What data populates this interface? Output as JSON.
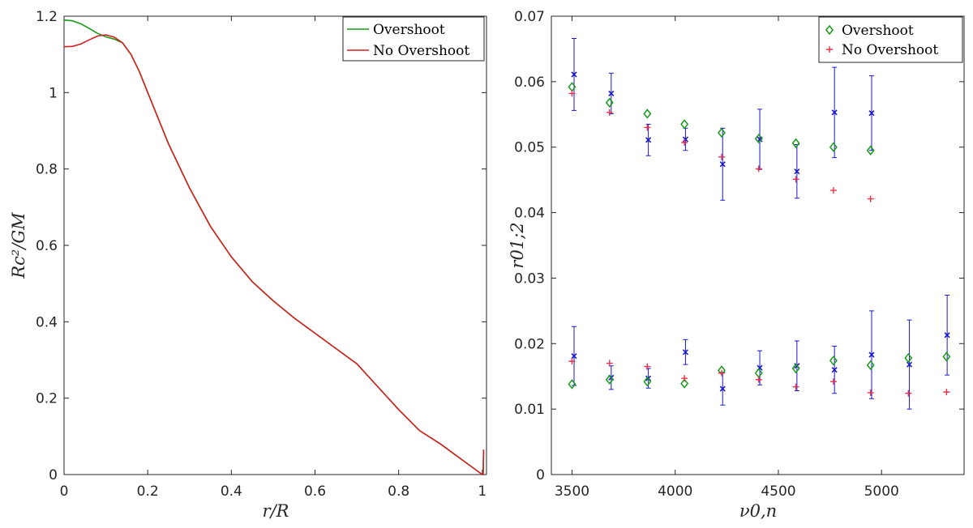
{
  "chart_data": [
    {
      "type": "line",
      "xlabel": "r/R",
      "ylabel": "Rc²/GM",
      "xlim": [
        0,
        1.01
      ],
      "ylim": [
        0,
        1.2
      ],
      "xticks": [
        "0",
        "0.2",
        "0.4",
        "0.6",
        "0.8",
        "1"
      ],
      "yticks": [
        "0",
        "0.2",
        "0.4",
        "0.6",
        "0.8",
        "1",
        "1.2"
      ],
      "grid": false,
      "legend": "top-right",
      "series": [
        {
          "name": "Overshoot",
          "color": "#1a9a1a",
          "x": [
            0,
            0.02,
            0.04,
            0.06,
            0.08,
            0.1,
            0.12,
            0.14,
            0.16,
            0.18,
            0.2,
            0.25,
            0.3,
            0.35,
            0.4,
            0.45,
            0.5,
            0.55,
            0.6,
            0.65,
            0.7,
            0.75,
            0.8,
            0.85,
            0.9,
            0.95,
            1.0,
            1.002,
            1.003
          ],
          "y": [
            1.19,
            1.188,
            1.18,
            1.168,
            1.155,
            1.146,
            1.14,
            1.13,
            1.1,
            1.055,
            1.0,
            0.865,
            0.75,
            0.65,
            0.57,
            0.505,
            0.455,
            0.41,
            0.37,
            0.33,
            0.29,
            0.23,
            0.17,
            0.115,
            0.08,
            0.04,
            0.0,
            0.0,
            0.065
          ]
        },
        {
          "name": "No Overshoot",
          "color": "#d42020",
          "x": [
            0,
            0.02,
            0.04,
            0.06,
            0.08,
            0.1,
            0.12,
            0.14,
            0.16,
            0.18,
            0.2,
            0.25,
            0.3,
            0.35,
            0.4,
            0.45,
            0.5,
            0.55,
            0.6,
            0.65,
            0.7,
            0.75,
            0.8,
            0.85,
            0.9,
            0.95,
            1.0,
            1.002,
            1.003
          ],
          "y": [
            1.12,
            1.121,
            1.127,
            1.138,
            1.148,
            1.151,
            1.145,
            1.13,
            1.1,
            1.055,
            1.0,
            0.865,
            0.75,
            0.65,
            0.57,
            0.505,
            0.455,
            0.41,
            0.37,
            0.33,
            0.29,
            0.23,
            0.17,
            0.115,
            0.08,
            0.04,
            0.0,
            0.0,
            0.065
          ]
        }
      ]
    },
    {
      "type": "scatter",
      "xlabel": "ν0,n",
      "ylabel": "r01;2",
      "xlim": [
        3400,
        5400
      ],
      "ylim": [
        0,
        0.07
      ],
      "xticks": [
        "3500",
        "4000",
        "4500",
        "5000"
      ],
      "yticks": [
        "0",
        "0.01",
        "0.02",
        "0.03",
        "0.04",
        "0.05",
        "0.06",
        "0.07"
      ],
      "grid": false,
      "legend": "top-right",
      "series": [
        {
          "name": "Overshoot",
          "marker": "diamond",
          "color": "#1a9a1a",
          "points": [
            [
              3500,
              0.0592
            ],
            [
              3682,
              0.0568
            ],
            [
              3865,
              0.0551
            ],
            [
              4045,
              0.0535
            ],
            [
              4225,
              0.0522
            ],
            [
              4405,
              0.0513
            ],
            [
              4585,
              0.0506
            ],
            [
              4767,
              0.05
            ],
            [
              4947,
              0.0495
            ],
            [
              3500,
              0.0138
            ],
            [
              3682,
              0.0145
            ],
            [
              3865,
              0.0142
            ],
            [
              4045,
              0.0139
            ],
            [
              4225,
              0.0159
            ],
            [
              4405,
              0.0155
            ],
            [
              4585,
              0.0162
            ],
            [
              4767,
              0.0174
            ],
            [
              4947,
              0.0167
            ],
            [
              5130,
              0.0178
            ],
            [
              5315,
              0.018
            ]
          ]
        },
        {
          "name": "No Overshoot",
          "marker": "plus",
          "color": "#e8324a",
          "points": [
            [
              3500,
              0.0582
            ],
            [
              3682,
              0.0553
            ],
            [
              3865,
              0.053
            ],
            [
              4045,
              0.0507
            ],
            [
              4225,
              0.0485
            ],
            [
              4405,
              0.0467
            ],
            [
              4585,
              0.0451
            ],
            [
              4767,
              0.0434
            ],
            [
              4947,
              0.0421
            ],
            [
              3500,
              0.0173
            ],
            [
              3682,
              0.017
            ],
            [
              3865,
              0.0165
            ],
            [
              4045,
              0.0147
            ],
            [
              4225,
              0.0155
            ],
            [
              4405,
              0.0145
            ],
            [
              4585,
              0.0134
            ],
            [
              4767,
              0.0142
            ],
            [
              4947,
              0.0125
            ],
            [
              5130,
              0.0124
            ],
            [
              5315,
              0.0126
            ]
          ]
        },
        {
          "name": "",
          "marker": "x",
          "color": "#1a1acc",
          "points": [
            [
              3510,
              0.0611,
              0.0055
            ],
            [
              3690,
              0.0582,
              0.0031
            ],
            [
              3870,
              0.0511,
              0.0024
            ],
            [
              4050,
              0.0512,
              0.0017
            ],
            [
              4230,
              0.0474,
              0.0055
            ],
            [
              4410,
              0.0512,
              0.0046
            ],
            [
              4590,
              0.0463,
              0.0041
            ],
            [
              4772,
              0.0553,
              0.0069
            ],
            [
              4952,
              0.0552,
              0.0057
            ],
            [
              3510,
              0.0181,
              0.0045
            ],
            [
              3690,
              0.0148,
              0.0018
            ],
            [
              3870,
              0.0147,
              0.0015
            ],
            [
              4050,
              0.0187,
              0.0019
            ],
            [
              4230,
              0.0131,
              0.0025
            ],
            [
              4410,
              0.0163,
              0.0026
            ],
            [
              4590,
              0.0166,
              0.0038
            ],
            [
              4772,
              0.016,
              0.0036
            ],
            [
              4952,
              0.0183,
              0.0067
            ],
            [
              5135,
              0.0168,
              0.0068
            ],
            [
              5318,
              0.0213,
              0.0061
            ]
          ]
        }
      ]
    }
  ]
}
